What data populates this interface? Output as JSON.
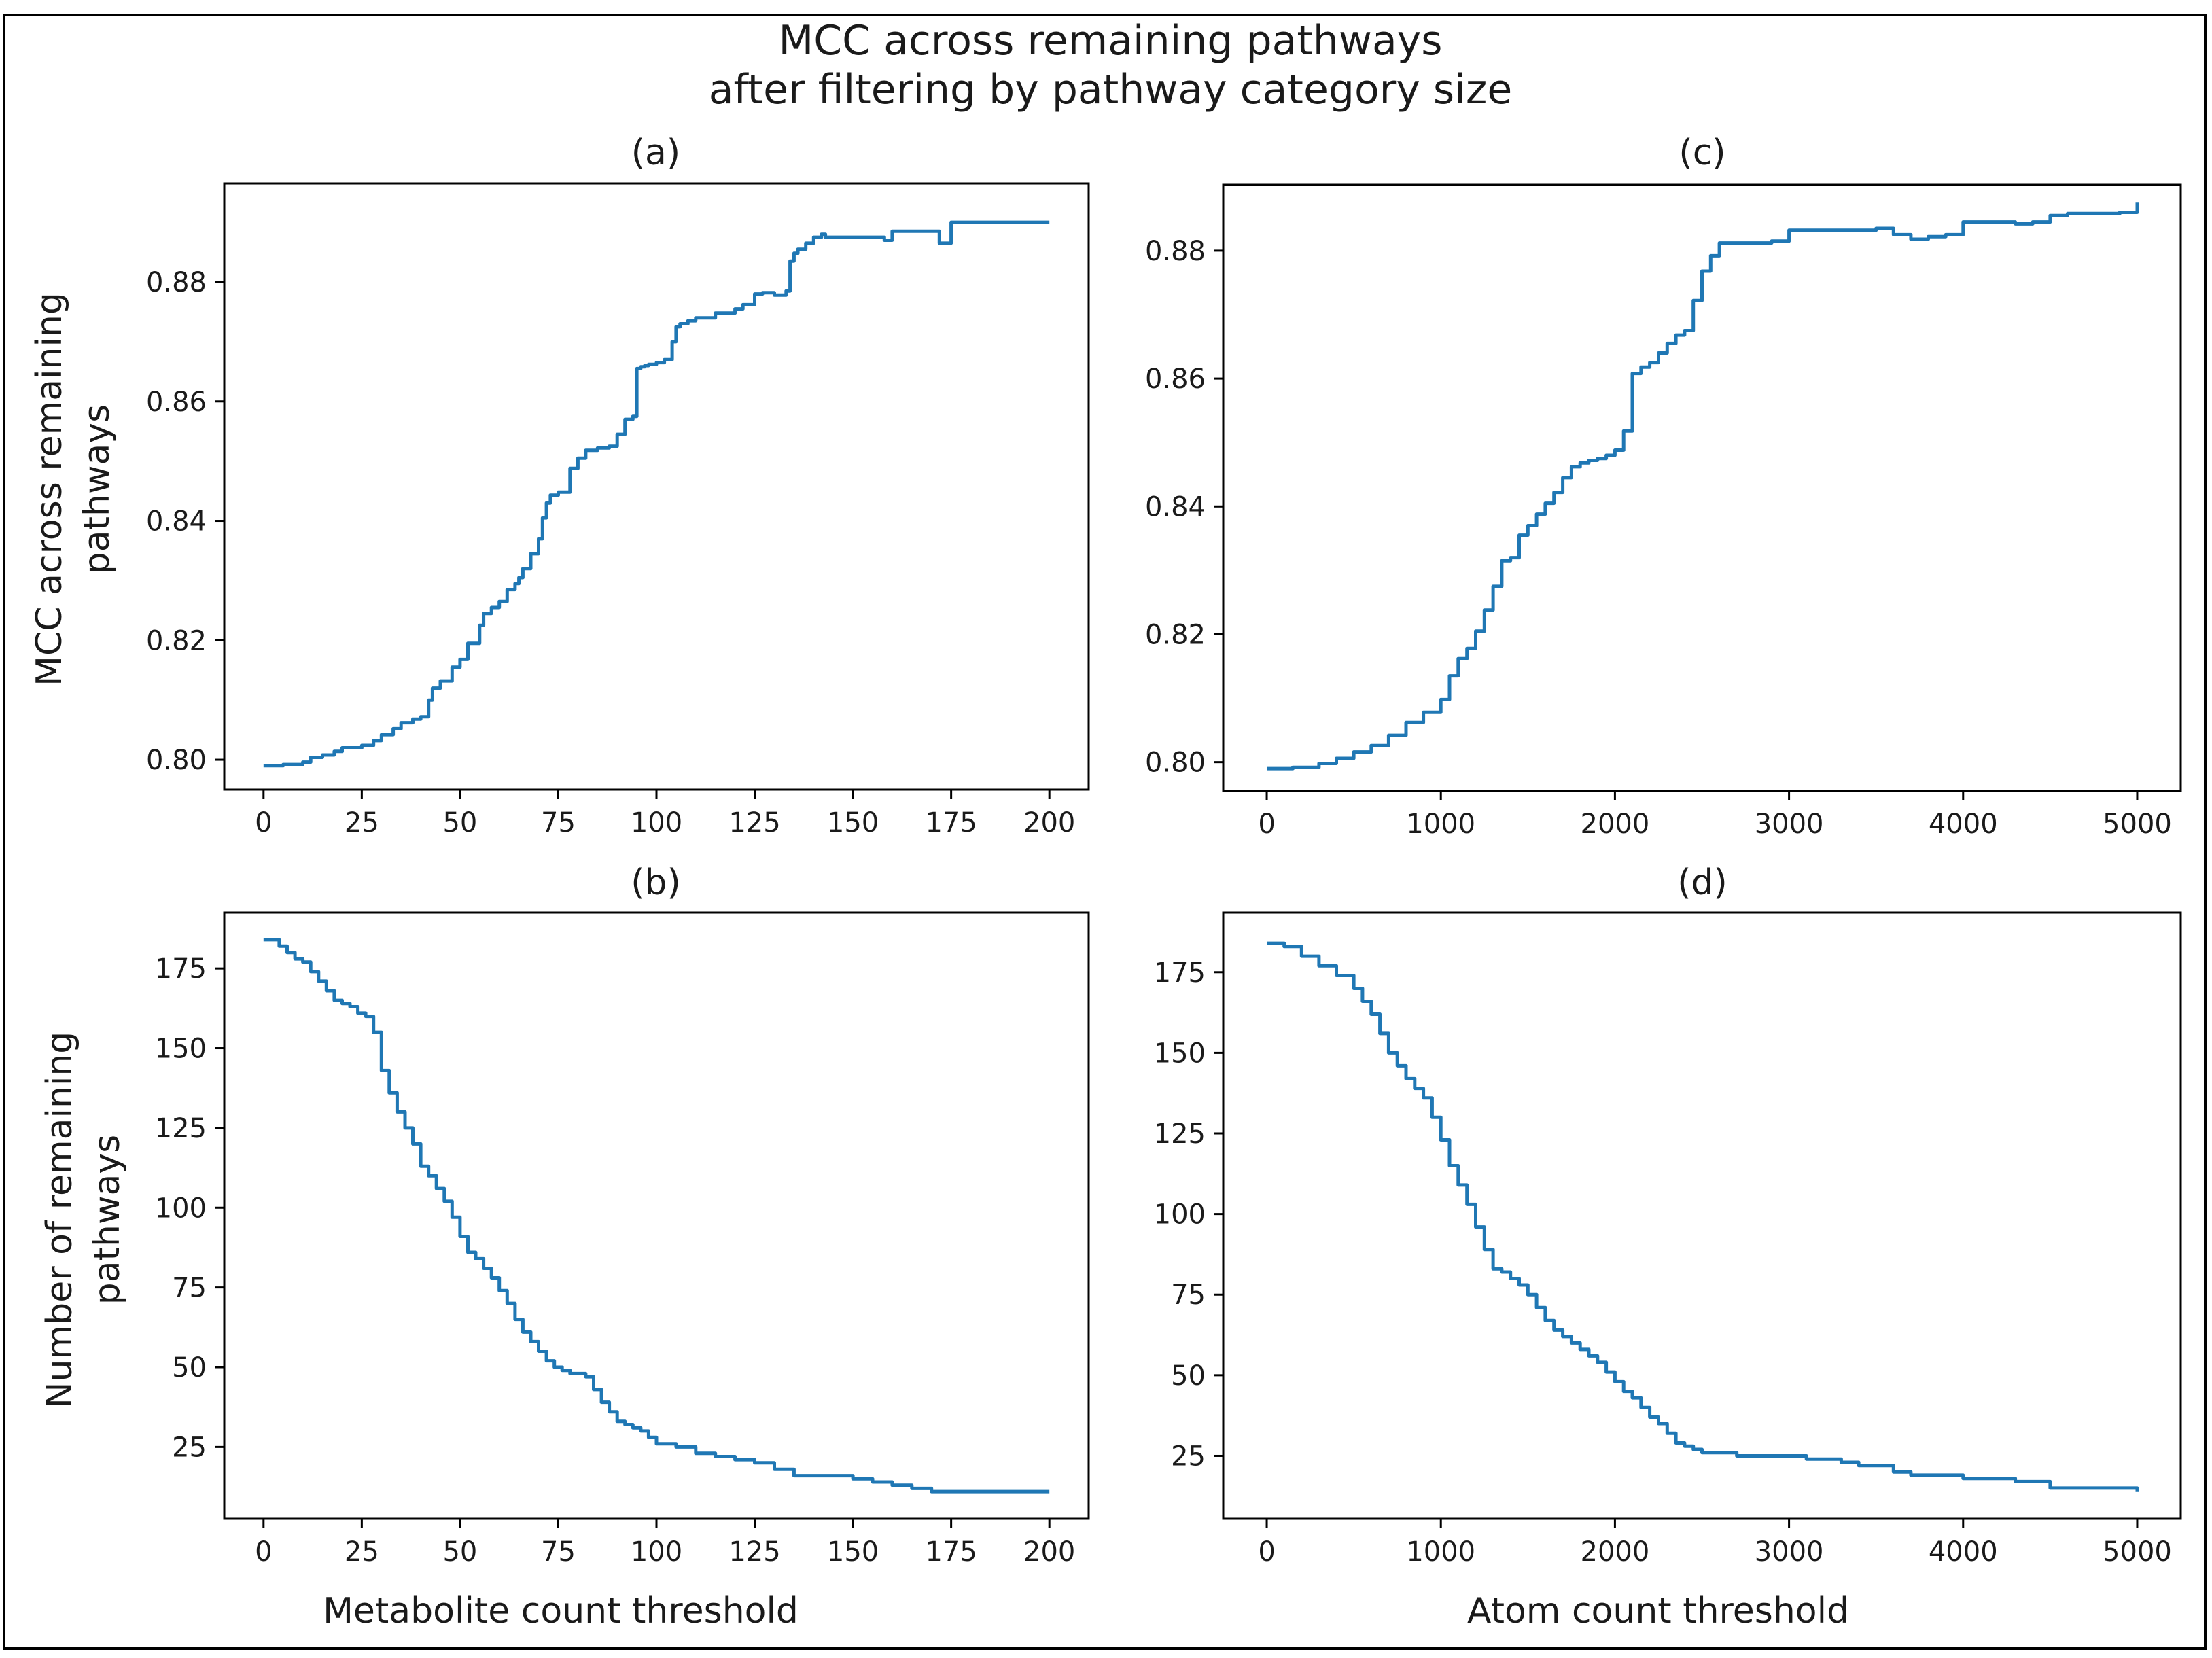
{
  "figure": {
    "title_line1": "MCC across remaining pathways",
    "title_line2": "after filtering by pathway category size"
  },
  "chart_data": [
    {
      "id": "a",
      "type": "line",
      "title": "(a)",
      "xlabel": "",
      "ylabel_line1": "MCC across remaining",
      "ylabel_line2": "pathways",
      "xlim": [
        -10,
        210
      ],
      "ylim": [
        0.795,
        0.8965
      ],
      "xticks": [
        0,
        25,
        50,
        75,
        100,
        125,
        150,
        175,
        200
      ],
      "yticks": [
        0.8,
        0.82,
        0.84,
        0.86,
        0.88
      ],
      "ytick_labels": [
        "0.80",
        "0.82",
        "0.84",
        "0.86",
        "0.88"
      ],
      "line_color": "#1f77b4",
      "step": true,
      "x": [
        0,
        5,
        10,
        12,
        15,
        18,
        20,
        25,
        28,
        30,
        33,
        35,
        38,
        40,
        42,
        43,
        45,
        48,
        50,
        52,
        55,
        56,
        58,
        60,
        62,
        64,
        65,
        66,
        68,
        70,
        71,
        72,
        73,
        75,
        78,
        80,
        82,
        85,
        88,
        90,
        92,
        94,
        95,
        96,
        97,
        98,
        100,
        102,
        104,
        105,
        106,
        108,
        110,
        115,
        120,
        122,
        125,
        127,
        130,
        133,
        134,
        135,
        136,
        138,
        140,
        142,
        143,
        145,
        150,
        155,
        158,
        160,
        165,
        170,
        172,
        174,
        175,
        180,
        185,
        190,
        195,
        200
      ],
      "y": [
        0.799,
        0.7992,
        0.7996,
        0.8004,
        0.8008,
        0.8014,
        0.802,
        0.8024,
        0.8032,
        0.8042,
        0.8052,
        0.8062,
        0.8068,
        0.8072,
        0.81,
        0.812,
        0.8132,
        0.8155,
        0.8168,
        0.8195,
        0.8225,
        0.8245,
        0.8255,
        0.8265,
        0.8285,
        0.8295,
        0.8305,
        0.832,
        0.8345,
        0.837,
        0.8405,
        0.843,
        0.8443,
        0.8448,
        0.8488,
        0.8505,
        0.8518,
        0.8522,
        0.8525,
        0.8545,
        0.857,
        0.8575,
        0.8655,
        0.8658,
        0.866,
        0.8662,
        0.8665,
        0.867,
        0.87,
        0.8725,
        0.873,
        0.8735,
        0.874,
        0.8748,
        0.8755,
        0.8762,
        0.878,
        0.8782,
        0.8778,
        0.8785,
        0.8835,
        0.8848,
        0.8855,
        0.8865,
        0.8875,
        0.888,
        0.8875,
        0.8875,
        0.8875,
        0.8875,
        0.887,
        0.8885,
        0.8885,
        0.8885,
        0.8865,
        0.8865,
        0.89,
        0.89,
        0.89,
        0.89,
        0.89,
        0.89
      ]
    },
    {
      "id": "c",
      "type": "line",
      "title": "(c)",
      "xlabel": "",
      "ylabel_line1": "",
      "ylabel_line2": "",
      "xlim": [
        -250,
        5250
      ],
      "ylim": [
        0.7955,
        0.8903
      ],
      "xticks": [
        0,
        1000,
        2000,
        3000,
        4000,
        5000
      ],
      "yticks": [
        0.8,
        0.82,
        0.84,
        0.86,
        0.88
      ],
      "ytick_labels": [
        "0.80",
        "0.82",
        "0.84",
        "0.86",
        "0.88"
      ],
      "line_color": "#1f77b4",
      "step": true,
      "x": [
        0,
        150,
        300,
        400,
        500,
        600,
        700,
        800,
        900,
        1000,
        1050,
        1100,
        1150,
        1200,
        1250,
        1300,
        1350,
        1400,
        1450,
        1500,
        1550,
        1600,
        1650,
        1700,
        1750,
        1800,
        1850,
        1900,
        1950,
        2000,
        2050,
        2100,
        2150,
        2200,
        2250,
        2300,
        2350,
        2400,
        2450,
        2500,
        2550,
        2600,
        2700,
        2800,
        2900,
        3000,
        3100,
        3200,
        3300,
        3400,
        3500,
        3600,
        3700,
        3800,
        3900,
        4000,
        4100,
        4200,
        4300,
        4400,
        4500,
        4600,
        4700,
        4800,
        4900,
        4980,
        5000
      ],
      "y": [
        0.799,
        0.7992,
        0.7998,
        0.8006,
        0.8016,
        0.8026,
        0.8042,
        0.8062,
        0.8078,
        0.8098,
        0.8135,
        0.8162,
        0.8178,
        0.8205,
        0.8238,
        0.8275,
        0.8315,
        0.832,
        0.8355,
        0.837,
        0.8388,
        0.8405,
        0.8422,
        0.8445,
        0.8462,
        0.8468,
        0.8472,
        0.8475,
        0.848,
        0.8488,
        0.8518,
        0.8608,
        0.8618,
        0.8625,
        0.864,
        0.8655,
        0.8668,
        0.8675,
        0.8722,
        0.8768,
        0.8792,
        0.8812,
        0.8812,
        0.8812,
        0.8815,
        0.8832,
        0.8832,
        0.8832,
        0.8832,
        0.8832,
        0.8835,
        0.8825,
        0.8818,
        0.8822,
        0.8825,
        0.8845,
        0.8845,
        0.8845,
        0.8842,
        0.8845,
        0.8855,
        0.8858,
        0.8858,
        0.8858,
        0.886,
        0.886,
        0.8875
      ]
    },
    {
      "id": "b",
      "type": "line",
      "title": "(b)",
      "xlabel": "Metabolite count threshold",
      "ylabel_line1": "Number of remaining",
      "ylabel_line2": "pathways",
      "xlim": [
        -10,
        210
      ],
      "ylim": [
        2.5,
        192.5
      ],
      "xticks": [
        0,
        25,
        50,
        75,
        100,
        125,
        150,
        175,
        200
      ],
      "yticks": [
        25,
        50,
        75,
        100,
        125,
        150,
        175
      ],
      "ytick_labels": [
        "25",
        "50",
        "75",
        "100",
        "125",
        "150",
        "175"
      ],
      "line_color": "#1f77b4",
      "step": true,
      "x": [
        0,
        2,
        4,
        6,
        8,
        10,
        12,
        14,
        16,
        18,
        20,
        22,
        24,
        26,
        28,
        30,
        32,
        34,
        36,
        38,
        40,
        42,
        44,
        46,
        48,
        50,
        52,
        54,
        56,
        58,
        60,
        62,
        64,
        66,
        68,
        70,
        72,
        74,
        76,
        78,
        80,
        82,
        84,
        86,
        88,
        90,
        92,
        94,
        96,
        98,
        100,
        105,
        110,
        115,
        120,
        125,
        130,
        135,
        140,
        145,
        150,
        155,
        160,
        165,
        170,
        175,
        180,
        185,
        190,
        195,
        200
      ],
      "y": [
        184,
        184,
        182,
        180,
        178,
        177,
        174,
        171,
        168,
        165,
        164,
        163,
        161,
        160,
        155,
        143,
        136,
        130,
        125,
        120,
        113,
        110,
        106,
        102,
        97,
        91,
        86,
        84,
        81,
        78,
        74,
        70,
        65,
        61,
        58,
        55,
        52,
        50,
        49,
        48,
        48,
        47,
        43,
        39,
        36,
        33,
        32,
        31,
        30,
        28,
        26,
        25,
        23,
        22,
        21,
        20,
        18,
        16,
        16,
        16,
        15,
        14,
        13,
        12,
        11,
        11,
        11,
        11,
        11,
        11,
        11
      ]
    },
    {
      "id": "d",
      "type": "line",
      "title": "(d)",
      "xlabel": "Atom count threshold",
      "ylabel_line1": "",
      "ylabel_line2": "",
      "xlim": [
        -250,
        5250
      ],
      "ylim": [
        5.5,
        193.5
      ],
      "xticks": [
        0,
        1000,
        2000,
        3000,
        4000,
        5000
      ],
      "yticks": [
        25,
        50,
        75,
        100,
        125,
        150,
        175
      ],
      "ytick_labels": [
        "25",
        "50",
        "75",
        "100",
        "125",
        "150",
        "175"
      ],
      "line_color": "#1f77b4",
      "step": true,
      "x": [
        0,
        100,
        200,
        300,
        400,
        500,
        550,
        600,
        650,
        700,
        750,
        800,
        850,
        900,
        950,
        1000,
        1050,
        1100,
        1150,
        1200,
        1250,
        1300,
        1350,
        1400,
        1450,
        1500,
        1550,
        1600,
        1650,
        1700,
        1750,
        1800,
        1850,
        1900,
        1950,
        2000,
        2050,
        2100,
        2150,
        2200,
        2250,
        2300,
        2350,
        2400,
        2450,
        2500,
        2550,
        2600,
        2700,
        2800,
        2900,
        3000,
        3100,
        3200,
        3300,
        3400,
        3500,
        3600,
        3700,
        3800,
        3900,
        4000,
        4100,
        4200,
        4300,
        4400,
        4500,
        4600,
        4700,
        4800,
        4900,
        5000
      ],
      "y": [
        184,
        183,
        180,
        177,
        174,
        170,
        166,
        162,
        156,
        150,
        146,
        142,
        139,
        136,
        130,
        123,
        115,
        109,
        103,
        96,
        89,
        83,
        82,
        80,
        78,
        75,
        71,
        67,
        64,
        62,
        60,
        58,
        56,
        54,
        51,
        48,
        45,
        43,
        40,
        37,
        35,
        32,
        29,
        28,
        27,
        26,
        26,
        26,
        25,
        25,
        25,
        25,
        24,
        24,
        23,
        22,
        22,
        20,
        19,
        19,
        19,
        18,
        18,
        18,
        17,
        17,
        15,
        15,
        15,
        15,
        15,
        14
      ]
    }
  ]
}
